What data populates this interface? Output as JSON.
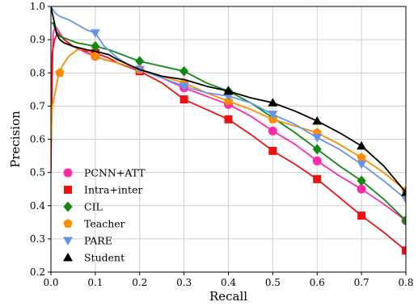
{
  "chart_data": {
    "type": "line",
    "xlabel": "Recall",
    "ylabel": "Precision",
    "xlim": [
      0.0,
      0.8
    ],
    "ylim": [
      0.2,
      1.0
    ],
    "xticks": [
      "0.0",
      "0.1",
      "0.2",
      "0.3",
      "0.4",
      "0.5",
      "0.6",
      "0.7",
      "0.8"
    ],
    "yticks": [
      "0.2",
      "0.3",
      "0.4",
      "0.5",
      "0.6",
      "0.7",
      "0.8",
      "0.9",
      "1.0"
    ],
    "grid": true,
    "legend_position": "lower-left",
    "series": [
      {
        "name": "PCNN+ATT",
        "color": "#ff2aa8",
        "marker": "circle",
        "x": [
          0.0,
          0.005,
          0.01,
          0.02,
          0.03,
          0.05,
          0.08,
          0.1,
          0.12,
          0.15,
          0.18,
          0.2,
          0.25,
          0.3,
          0.35,
          0.4,
          0.45,
          0.5,
          0.55,
          0.6,
          0.65,
          0.7,
          0.75,
          0.8
        ],
        "y": [
          0.6,
          0.92,
          0.94,
          0.92,
          0.9,
          0.88,
          0.86,
          0.85,
          0.84,
          0.83,
          0.815,
          0.81,
          0.785,
          0.755,
          0.73,
          0.705,
          0.67,
          0.625,
          0.585,
          0.535,
          0.49,
          0.45,
          0.405,
          0.355
        ],
        "marker_x": [
          0.1,
          0.2,
          0.3,
          0.4,
          0.5,
          0.6,
          0.7,
          0.8
        ],
        "marker_y": [
          0.85,
          0.81,
          0.755,
          0.705,
          0.625,
          0.535,
          0.45,
          0.355
        ]
      },
      {
        "name": "Intra+inter",
        "color": "#ee1111",
        "marker": "square",
        "x": [
          0.0,
          0.003,
          0.008,
          0.015,
          0.03,
          0.05,
          0.08,
          0.1,
          0.13,
          0.15,
          0.18,
          0.2,
          0.25,
          0.3,
          0.35,
          0.4,
          0.45,
          0.5,
          0.55,
          0.6,
          0.65,
          0.7,
          0.75,
          0.8
        ],
        "y": [
          0.5,
          0.86,
          0.9,
          0.92,
          0.9,
          0.88,
          0.865,
          0.86,
          0.845,
          0.83,
          0.815,
          0.805,
          0.77,
          0.72,
          0.69,
          0.66,
          0.615,
          0.565,
          0.525,
          0.48,
          0.425,
          0.37,
          0.32,
          0.265
        ],
        "marker_x": [
          0.1,
          0.2,
          0.3,
          0.4,
          0.5,
          0.6,
          0.7,
          0.8
        ],
        "marker_y": [
          0.86,
          0.805,
          0.72,
          0.66,
          0.565,
          0.48,
          0.37,
          0.265
        ]
      },
      {
        "name": "CIL",
        "color": "#118811",
        "marker": "diamond",
        "x": [
          0.0,
          0.005,
          0.01,
          0.02,
          0.04,
          0.06,
          0.08,
          0.1,
          0.13,
          0.15,
          0.18,
          0.2,
          0.25,
          0.3,
          0.35,
          0.4,
          0.45,
          0.5,
          0.55,
          0.6,
          0.65,
          0.7,
          0.75,
          0.8
        ],
        "y": [
          0.95,
          0.95,
          0.93,
          0.91,
          0.9,
          0.89,
          0.885,
          0.88,
          0.87,
          0.86,
          0.845,
          0.835,
          0.82,
          0.805,
          0.77,
          0.745,
          0.71,
          0.665,
          0.62,
          0.57,
          0.52,
          0.475,
          0.42,
          0.355
        ],
        "marker_x": [
          0.1,
          0.2,
          0.3,
          0.4,
          0.5,
          0.6,
          0.7,
          0.8
        ],
        "marker_y": [
          0.88,
          0.835,
          0.805,
          0.745,
          0.665,
          0.57,
          0.475,
          0.355
        ]
      },
      {
        "name": "Teacher",
        "color": "#ff8c00",
        "marker": "pentagon",
        "x": [
          0.0,
          0.003,
          0.008,
          0.015,
          0.025,
          0.04,
          0.06,
          0.08,
          0.1,
          0.12,
          0.15,
          0.2,
          0.25,
          0.3,
          0.35,
          0.4,
          0.45,
          0.5,
          0.55,
          0.6,
          0.65,
          0.7,
          0.75,
          0.8
        ],
        "y": [
          0.6,
          0.7,
          0.73,
          0.78,
          0.82,
          0.85,
          0.87,
          0.87,
          0.85,
          0.84,
          0.83,
          0.81,
          0.79,
          0.77,
          0.74,
          0.715,
          0.69,
          0.66,
          0.64,
          0.62,
          0.585,
          0.545,
          0.5,
          0.445
        ],
        "marker_x": [
          0.02,
          0.1,
          0.2,
          0.3,
          0.4,
          0.5,
          0.6,
          0.7,
          0.8
        ],
        "marker_y": [
          0.8,
          0.85,
          0.81,
          0.77,
          0.715,
          0.66,
          0.62,
          0.545,
          0.445
        ]
      },
      {
        "name": "PARE",
        "color": "#6495ed",
        "marker": "triangle-down",
        "x": [
          0.0,
          0.005,
          0.01,
          0.02,
          0.04,
          0.06,
          0.08,
          0.1,
          0.12,
          0.15,
          0.18,
          0.2,
          0.25,
          0.3,
          0.35,
          0.4,
          0.45,
          0.5,
          0.55,
          0.6,
          0.65,
          0.7,
          0.75,
          0.8
        ],
        "y": [
          1.0,
          0.99,
          0.98,
          0.97,
          0.96,
          0.945,
          0.93,
          0.92,
          0.88,
          0.845,
          0.82,
          0.81,
          0.785,
          0.76,
          0.74,
          0.73,
          0.71,
          0.675,
          0.645,
          0.605,
          0.57,
          0.525,
          0.475,
          0.42
        ],
        "marker_x": [
          0.1,
          0.2,
          0.3,
          0.4,
          0.5,
          0.6,
          0.7,
          0.8
        ],
        "marker_y": [
          0.92,
          0.81,
          0.76,
          0.73,
          0.675,
          0.605,
          0.525,
          0.42
        ]
      },
      {
        "name": "Student",
        "color": "#000000",
        "marker": "triangle-up",
        "x": [
          0.0,
          0.003,
          0.008,
          0.012,
          0.02,
          0.03,
          0.05,
          0.08,
          0.1,
          0.13,
          0.15,
          0.2,
          0.25,
          0.3,
          0.35,
          0.4,
          0.45,
          0.5,
          0.55,
          0.6,
          0.65,
          0.7,
          0.75,
          0.8
        ],
        "y": [
          1.0,
          0.98,
          0.95,
          0.92,
          0.9,
          0.89,
          0.88,
          0.87,
          0.865,
          0.855,
          0.84,
          0.81,
          0.79,
          0.78,
          0.76,
          0.745,
          0.725,
          0.71,
          0.685,
          0.655,
          0.62,
          0.58,
          0.52,
          0.44
        ],
        "marker_x": [
          0.4,
          0.5,
          0.6,
          0.7,
          0.8
        ],
        "marker_y": [
          0.745,
          0.71,
          0.655,
          0.58,
          0.44
        ]
      }
    ]
  }
}
